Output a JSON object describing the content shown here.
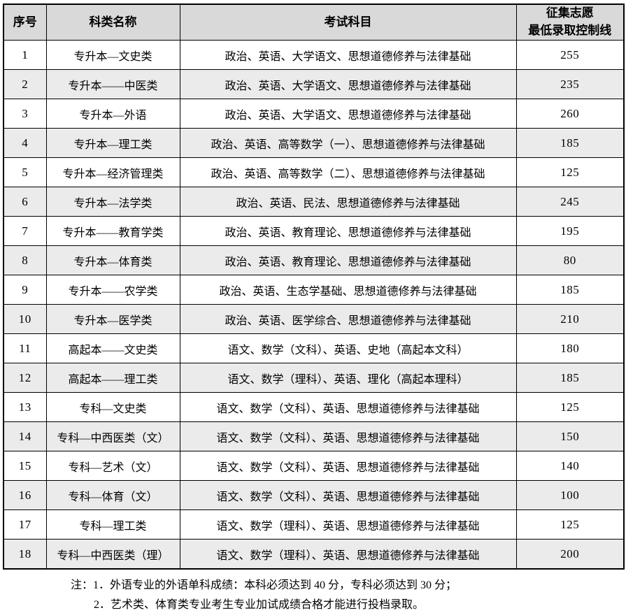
{
  "colors": {
    "header_bg": "#d9d9d9",
    "stripe_bg": "#ebebeb",
    "border": "#000000",
    "text": "#000000"
  },
  "table": {
    "header": {
      "no": "序号",
      "category": "科类名称",
      "subjects": "考试科目",
      "score_line1": "征集志愿",
      "score_line2": "最低录取控制线"
    },
    "rows": [
      {
        "no": "1",
        "category": "专升本—文史类",
        "subjects": "政治、英语、大学语文、思想道德修养与法律基础",
        "score": "255"
      },
      {
        "no": "2",
        "category": "专升本——中医类",
        "subjects": "政治、英语、大学语文、思想道德修养与法律基础",
        "score": "235"
      },
      {
        "no": "3",
        "category": "专升本—外语",
        "subjects": "政治、英语、大学语文、思想道德修养与法律基础",
        "score": "260"
      },
      {
        "no": "4",
        "category": "专升本—理工类",
        "subjects": "政治、英语、高等数学（一）、思想道德修养与法律基础",
        "score": "185"
      },
      {
        "no": "5",
        "category": "专升本—经济管理类",
        "subjects": "政治、英语、高等数学（二）、思想道德修养与法律基础",
        "score": "125"
      },
      {
        "no": "6",
        "category": "专升本—法学类",
        "subjects": "政治、英语、民法、思想道德修养与法律基础",
        "score": "245"
      },
      {
        "no": "7",
        "category": "专升本——教育学类",
        "subjects": "政治、英语、教育理论、思想道德修养与法律基础",
        "score": "195"
      },
      {
        "no": "8",
        "category": "专升本—体育类",
        "subjects": "政治、英语、教育理论、思想道德修养与法律基础",
        "score": "80"
      },
      {
        "no": "9",
        "category": "专升本——农学类",
        "subjects": "政治、英语、生态学基础、思想道德修养与法律基础",
        "score": "185"
      },
      {
        "no": "10",
        "category": "专升本—医学类",
        "subjects": "政治、英语、医学综合、思想道德修养与法律基础",
        "score": "210"
      },
      {
        "no": "11",
        "category": "高起本——文史类",
        "subjects": "语文、数学（文科）、英语、史地（高起本文科）",
        "score": "180"
      },
      {
        "no": "12",
        "category": "高起本——理工类",
        "subjects": "语文、数学（理科）、英语、理化（高起本理科）",
        "score": "185"
      },
      {
        "no": "13",
        "category": "专科—文史类",
        "subjects": "语文、数学（文科）、英语、思想道德修养与法律基础",
        "score": "125"
      },
      {
        "no": "14",
        "category": "专科—中西医类（文）",
        "subjects": "语文、数学（文科）、英语、思想道德修养与法律基础",
        "score": "150"
      },
      {
        "no": "15",
        "category": "专科—艺术（文）",
        "subjects": "语文、数学（文科）、英语、思想道德修养与法律基础",
        "score": "140"
      },
      {
        "no": "16",
        "category": "专科—体育（文）",
        "subjects": "语文、数学（文科）、英语、思想道德修养与法律基础",
        "score": "100"
      },
      {
        "no": "17",
        "category": "专科—理工类",
        "subjects": "语文、数学（理科）、英语、思想道德修养与法律基础",
        "score": "125"
      },
      {
        "no": "18",
        "category": "专科—中西医类（理）",
        "subjects": "语文、数学（理科）、英语、思想道德修养与法律基础",
        "score": "200"
      }
    ]
  },
  "notes": [
    "注：1．外语专业的外语单科成绩：本科必须达到 40 分，专科必须达到 30 分；",
    "2．艺术类、体育类专业考生专业加试成绩合格才能进行投档录取。"
  ]
}
